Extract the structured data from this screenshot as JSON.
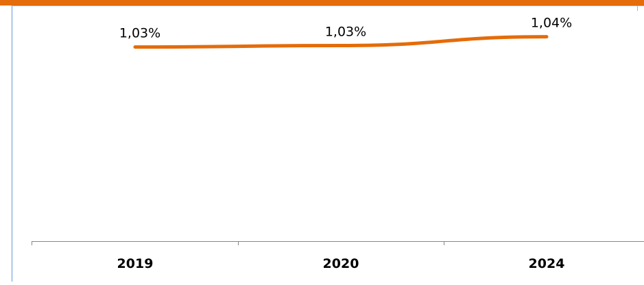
{
  "chart_data": {
    "type": "line",
    "categories": [
      "2019",
      "2020",
      "2024"
    ],
    "series": [
      {
        "values": [
          1.032,
          1.033,
          1.039
        ],
        "data_labels": [
          "1,03%",
          "1,03%",
          "1,04%"
        ],
        "color": "#E46C0A"
      }
    ],
    "title": "",
    "xlabel": "",
    "ylabel": "",
    "ylim": [
      0.9,
      1.05
    ],
    "grid": false,
    "legend": "none"
  },
  "colors": {
    "top_bar": "#E46C0A",
    "frame_border": "#8EB4E3",
    "axis": "#868686"
  }
}
